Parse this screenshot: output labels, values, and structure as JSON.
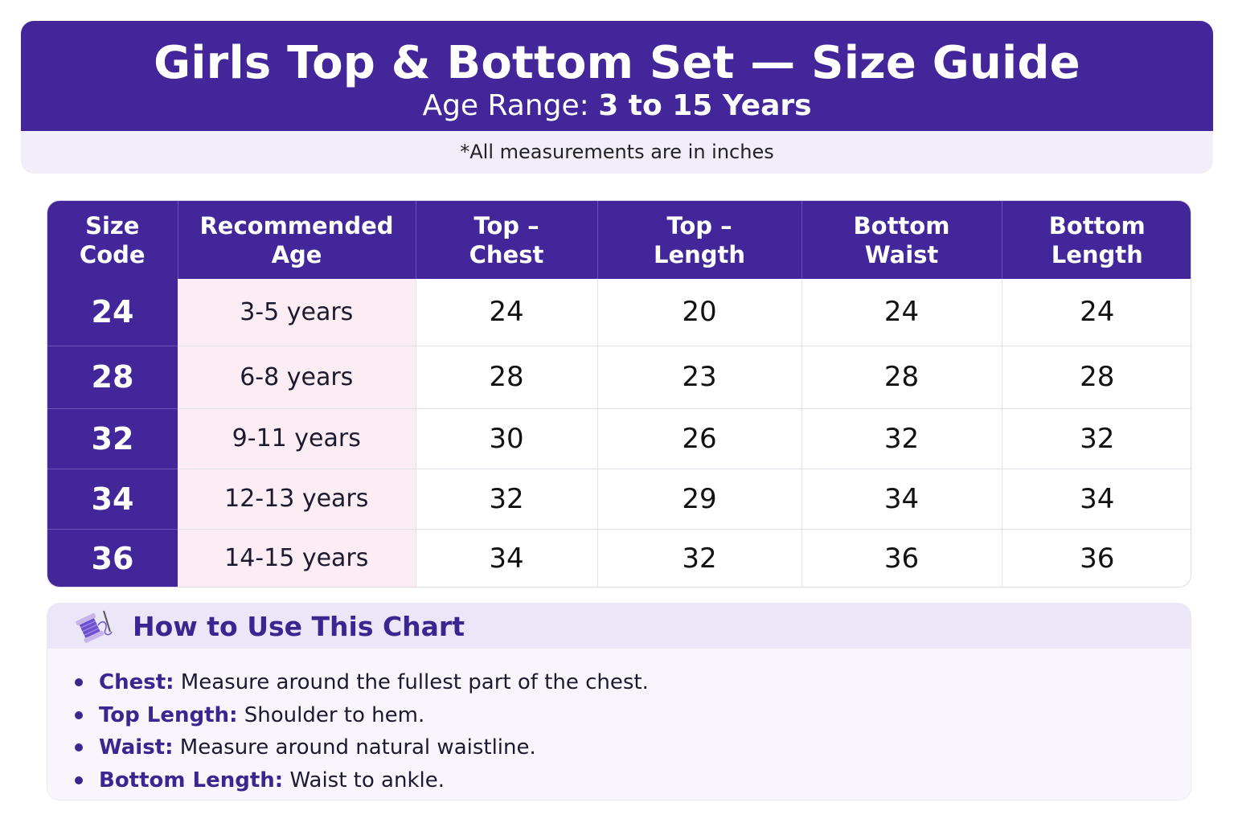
{
  "header": {
    "title": "Girls Top & Bottom Set — Size Guide",
    "age_range_label": "Age Range:",
    "age_range_value": "3 to 15 Years",
    "note": "*All measurements are in inches"
  },
  "table": {
    "headers": {
      "size_line1": "Size",
      "size_line2": "Code",
      "age_line1": "Recommended",
      "age_line2": "Age",
      "chest_line1": "Top –",
      "chest_line2": "Chest",
      "toplen_line1": "Top –",
      "toplen_line2": "Length",
      "waist_line1": "Bottom",
      "waist_line2": "Waist",
      "botlen_line1": "Bottom",
      "botlen_line2": "Length"
    },
    "rows": [
      {
        "size": "24",
        "age": "3-5 years",
        "chest": "24",
        "top_length": "20",
        "waist": "24",
        "bottom_length": "24"
      },
      {
        "size": "28",
        "age": "6-8 years",
        "chest": "28",
        "top_length": "23",
        "waist": "28",
        "bottom_length": "28"
      },
      {
        "size": "32",
        "age": "9-11 years",
        "chest": "30",
        "top_length": "26",
        "waist": "32",
        "bottom_length": "32"
      },
      {
        "size": "34",
        "age": "12-13 years",
        "chest": "32",
        "top_length": "29",
        "waist": "34",
        "bottom_length": "34"
      },
      {
        "size": "36",
        "age": "14-15 years",
        "chest": "34",
        "top_length": "32",
        "waist": "36",
        "bottom_length": "36"
      }
    ]
  },
  "howto": {
    "icon": "thread-spool-needle-icon",
    "title": "How to Use This Chart",
    "tips": [
      {
        "term": "Chest:",
        "text": " Measure around the fullest part of the chest."
      },
      {
        "term": "Top Length:",
        "text": " Shoulder to hem."
      },
      {
        "term": "Waist:",
        "text": " Measure around natural waistline."
      },
      {
        "term": "Bottom Length:",
        "text": " Waist to ankle."
      }
    ]
  },
  "colors": {
    "primary": "#43279a",
    "age_column_bg": "#fcedf4",
    "note_bg": "#f1eefa"
  }
}
